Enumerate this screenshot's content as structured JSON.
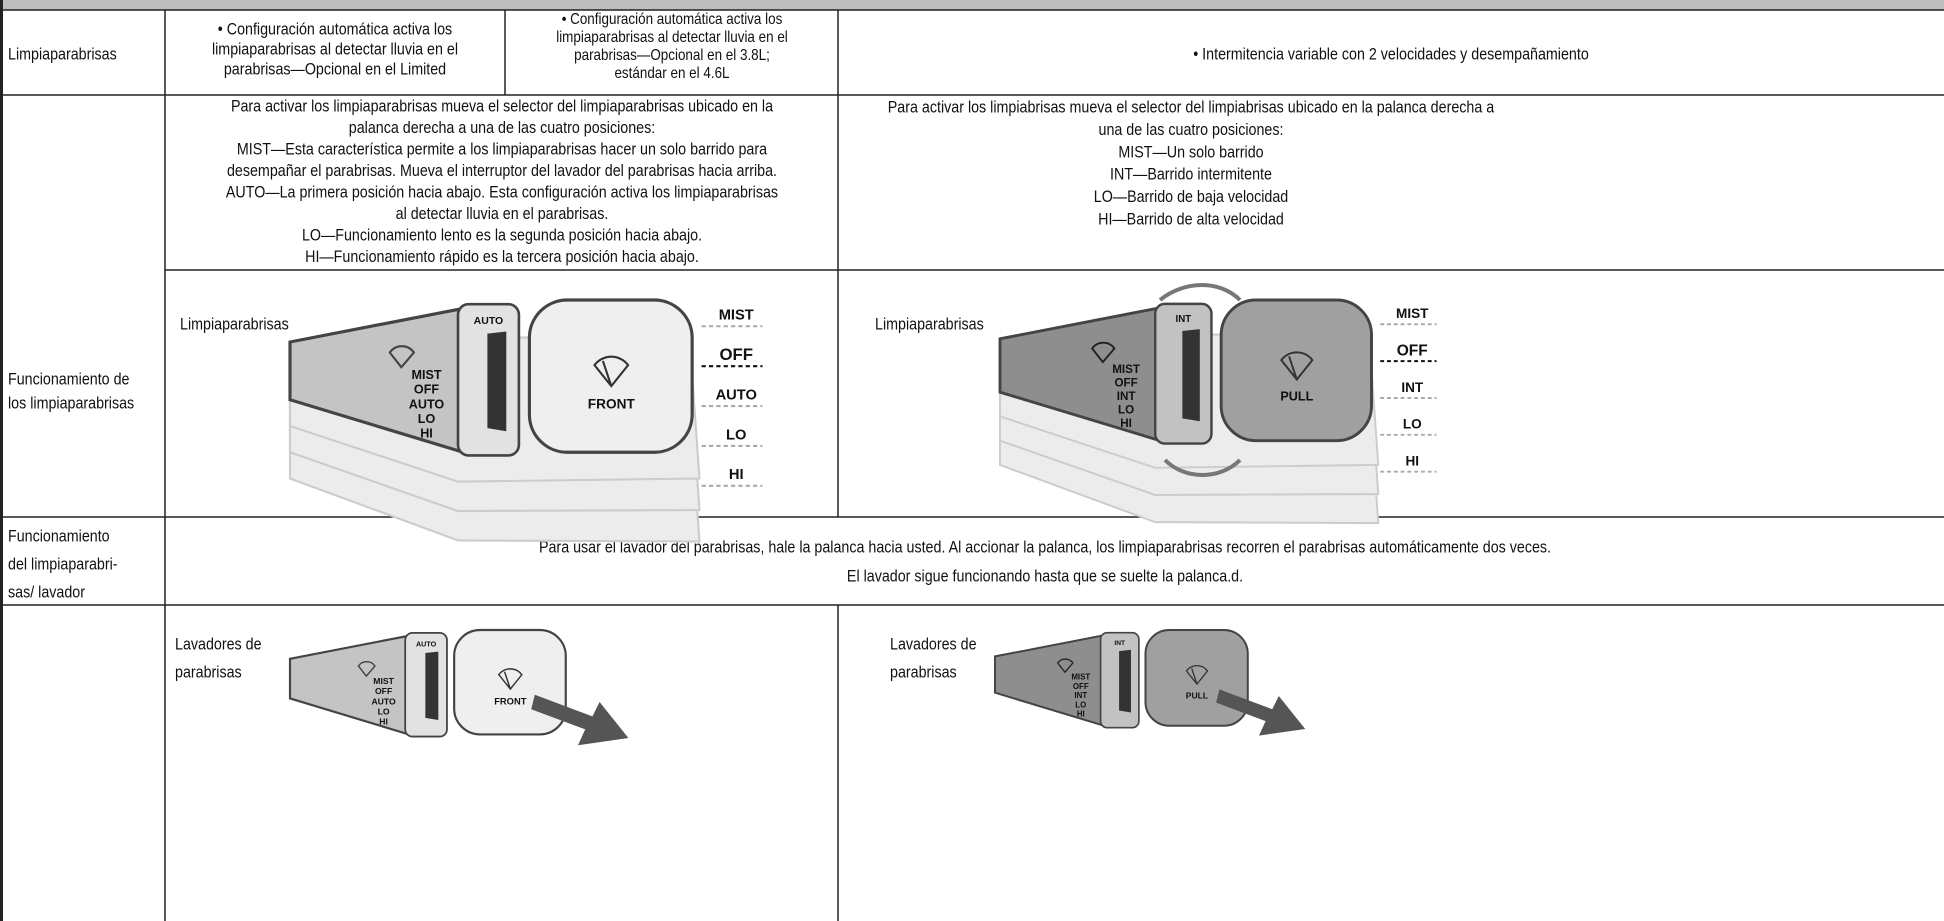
{
  "rows": [
    {
      "label": [
        "Limpiaparabrisas"
      ],
      "cells": [
        [
          "• Configuración automática activa los",
          "limpiaparabrisas al detectar lluvia en el",
          "parabrisas—Opcional en el Limited"
        ],
        [
          "• Configuración automática activa los",
          "limpiaparabrisas al detectar lluvia en el",
          "parabrisas—Opcional en el 3.8L;",
          "estándar en el 4.6L"
        ],
        [
          "• Intermitencia variable con 2 velocidades y desempañamiento"
        ]
      ]
    },
    {
      "label": [
        "Funcionamiento de",
        "los limpiaparabrisas"
      ],
      "cells": [
        [
          "Para activar los limpiaparabrisas mueva el selector del limpiaparabrisas ubicado en la",
          "palanca derecha a una de las cuatro posiciones:",
          "MIST—Esta característica permite a los limpiaparabrisas hacer un solo barrido para",
          "desempañar el parabrisas. Mueva el interruptor del lavador del parabrisas hacia arriba.",
          "AUTO—La primera posición hacia abajo. Esta configuración activa los limpiaparabrisas",
          "al detectar lluvia en el parabrisas.",
          "LO—Funcionamiento lento es la segunda posición hacia abajo.",
          "HI—Funcionamiento rápido es la tercera posición hacia abajo."
        ],
        [
          "Para activar los limpiabrisas mueva el selector del limpiabrisas ubicado en la palanca derecha a",
          "una de las cuatro posiciones:",
          "MIST—Un solo barrido",
          "INT—Barrido intermitente",
          "LO—Barrido de baja velocidad",
          "HI—Barrido de alta velocidad"
        ]
      ],
      "diagrams": [
        {
          "caption": [
            "Limpiaparabrisas"
          ],
          "lever": [
            "MIST",
            "OFF",
            "AUTO",
            "LO",
            "HI"
          ],
          "ring": "AUTO",
          "cap": "FRONT",
          "scale": [
            "MIST",
            "OFF",
            "AUTO",
            "LO",
            "HI"
          ]
        },
        {
          "caption": [
            "Limpiaparabrisas"
          ],
          "lever": [
            "MIST",
            "OFF",
            "INT",
            "LO",
            "HI"
          ],
          "ring": "INT",
          "cap": "PULL",
          "scale": [
            "MIST",
            "OFF",
            "INT",
            "LO",
            "HI"
          ]
        }
      ]
    },
    {
      "label": [
        "Funcionamiento",
        "del limpiaparabri-",
        "sas/ lavador"
      ],
      "cells": [
        [
          "Para usar el lavador del parabrisas, hale la palanca hacia usted. Al accionar la palanca, los limpiaparabrisas recorren el parabrisas automáticamente dos veces.",
          "El lavador sigue funcionando hasta que se suelte la palanca.d."
        ]
      ]
    },
    {
      "diagrams": [
        {
          "caption": [
            "Lavadores de",
            "parabrisas"
          ],
          "lever": [
            "MIST",
            "OFF",
            "AUTO",
            "LO",
            "HI"
          ],
          "ring": "AUTO",
          "cap": "FRONT"
        },
        {
          "caption": [
            "Lavadores de",
            "parabrisas"
          ],
          "lever": [
            "MIST",
            "OFF",
            "INT",
            "LO",
            "HI"
          ],
          "ring": "INT",
          "cap": "PULL"
        }
      ]
    }
  ]
}
